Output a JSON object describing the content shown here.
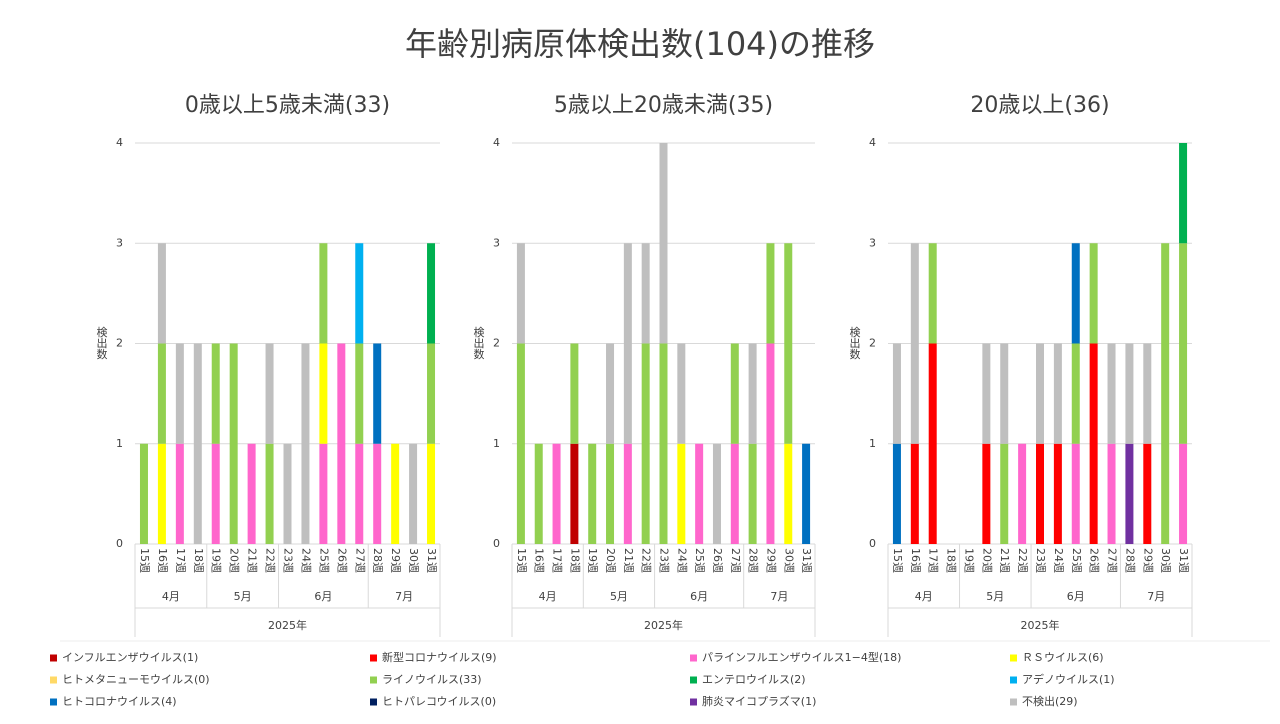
{
  "title": "年齢別病原体検出数(104)の推移",
  "series": [
    {
      "name": "インフルエンザウイルス(1)",
      "color": "#c00000"
    },
    {
      "name": "新型コロナウイルス(9)",
      "color": "#ff0000"
    },
    {
      "name": "パラインフルエンザウイルス1−4型(18)",
      "color": "#ff66cc"
    },
    {
      "name": "ＲＳウイルス(6)",
      "color": "#ffff00"
    },
    {
      "name": "ヒトメタニューモウイルス(0)",
      "color": "#ffd966"
    },
    {
      "name": "ライノウイルス(33)",
      "color": "#92d050"
    },
    {
      "name": "エンテロウイルス(2)",
      "color": "#00b050"
    },
    {
      "name": "アデノウイルス(1)",
      "color": "#00b0f0"
    },
    {
      "name": "ヒトコロナウイルス(4)",
      "color": "#0070c0"
    },
    {
      "name": "ヒトパレコウイルス(0)",
      "color": "#002060"
    },
    {
      "name": "肺炎マイコプラズマ(1)",
      "color": "#7030a0"
    },
    {
      "name": "不検出(29)",
      "color": "#bfbfbf"
    }
  ],
  "chart_data": [
    {
      "type": "bar",
      "stacked": true,
      "title": "0歳以上5歳未満(33)",
      "y_label": "検出数",
      "categories": [
        "15週",
        "16週",
        "17週",
        "18週",
        "19週",
        "20週",
        "21週",
        "22週",
        "23週",
        "24週",
        "25週",
        "26週",
        "27週",
        "28週",
        "29週",
        "30週",
        "31週"
      ],
      "months": [
        "4月",
        "5月",
        "6月",
        "7月"
      ],
      "year": "2025年",
      "ylim": [
        0,
        4
      ],
      "yticks": [
        0,
        1,
        2,
        3,
        4
      ],
      "grid": true,
      "series": [
        {
          "values": [
            0,
            0,
            0,
            0,
            0,
            0,
            0,
            0,
            0,
            0,
            0,
            0,
            0,
            0,
            0,
            0,
            0
          ]
        },
        {
          "values": [
            0,
            0,
            0,
            0,
            0,
            0,
            0,
            0,
            0,
            0,
            0,
            0,
            0,
            0,
            0,
            0,
            0
          ]
        },
        {
          "values": [
            0,
            0,
            1,
            0,
            1,
            0,
            1,
            0,
            0,
            0,
            1,
            2,
            1,
            1,
            0,
            0,
            0
          ]
        },
        {
          "values": [
            0,
            1,
            0,
            0,
            0,
            0,
            0,
            0,
            0,
            0,
            1,
            0,
            0,
            0,
            1,
            0,
            1
          ]
        },
        {
          "values": [
            0,
            0,
            0,
            0,
            0,
            0,
            0,
            0,
            0,
            0,
            0,
            0,
            0,
            0,
            0,
            0,
            0
          ]
        },
        {
          "values": [
            1,
            1,
            0,
            0,
            1,
            2,
            0,
            1,
            0,
            0,
            1,
            0,
            1,
            0,
            0,
            0,
            1
          ]
        },
        {
          "values": [
            0,
            0,
            0,
            0,
            0,
            0,
            0,
            0,
            0,
            0,
            0,
            0,
            0,
            0,
            0,
            0,
            1
          ]
        },
        {
          "values": [
            0,
            0,
            0,
            0,
            0,
            0,
            0,
            0,
            0,
            0,
            0,
            0,
            1,
            0,
            0,
            0,
            0
          ]
        },
        {
          "values": [
            0,
            0,
            0,
            0,
            0,
            0,
            0,
            0,
            0,
            0,
            0,
            0,
            0,
            1,
            0,
            0,
            0
          ]
        },
        {
          "values": [
            0,
            0,
            0,
            0,
            0,
            0,
            0,
            0,
            0,
            0,
            0,
            0,
            0,
            0,
            0,
            0,
            0
          ]
        },
        {
          "values": [
            0,
            0,
            0,
            0,
            0,
            0,
            0,
            0,
            0,
            0,
            0,
            0,
            0,
            0,
            0,
            0,
            0
          ]
        },
        {
          "values": [
            0,
            1,
            1,
            2,
            0,
            0,
            0,
            1,
            1,
            2,
            0,
            0,
            0,
            0,
            0,
            1,
            0
          ]
        }
      ]
    },
    {
      "type": "bar",
      "stacked": true,
      "title": "5歳以上20歳未満(35)",
      "y_label": "検出数",
      "categories": [
        "15週",
        "16週",
        "17週",
        "18週",
        "19週",
        "20週",
        "21週",
        "22週",
        "23週",
        "24週",
        "25週",
        "26週",
        "27週",
        "28週",
        "29週",
        "30週",
        "31週"
      ],
      "months": [
        "4月",
        "5月",
        "6月",
        "7月"
      ],
      "year": "2025年",
      "ylim": [
        0,
        4
      ],
      "yticks": [
        0,
        1,
        2,
        3,
        4
      ],
      "grid": true,
      "series": [
        {
          "values": [
            0,
            0,
            0,
            1,
            0,
            0,
            0,
            0,
            0,
            0,
            0,
            0,
            0,
            0,
            0,
            0,
            0
          ]
        },
        {
          "values": [
            0,
            0,
            0,
            0,
            0,
            0,
            0,
            0,
            0,
            0,
            0,
            0,
            0,
            0,
            0,
            0,
            0
          ]
        },
        {
          "values": [
            0,
            0,
            1,
            0,
            0,
            0,
            1,
            0,
            0,
            0,
            1,
            0,
            1,
            0,
            2,
            0,
            0
          ]
        },
        {
          "values": [
            0,
            0,
            0,
            0,
            0,
            0,
            0,
            0,
            0,
            1,
            0,
            0,
            0,
            0,
            0,
            1,
            0
          ]
        },
        {
          "values": [
            0,
            0,
            0,
            0,
            0,
            0,
            0,
            0,
            0,
            0,
            0,
            0,
            0,
            0,
            0,
            0,
            0
          ]
        },
        {
          "values": [
            2,
            1,
            0,
            1,
            1,
            1,
            0,
            2,
            2,
            0,
            0,
            0,
            1,
            1,
            1,
            2,
            0
          ]
        },
        {
          "values": [
            0,
            0,
            0,
            0,
            0,
            0,
            0,
            0,
            0,
            0,
            0,
            0,
            0,
            0,
            0,
            0,
            0
          ]
        },
        {
          "values": [
            0,
            0,
            0,
            0,
            0,
            0,
            0,
            0,
            0,
            0,
            0,
            0,
            0,
            0,
            0,
            0,
            0
          ]
        },
        {
          "values": [
            0,
            0,
            0,
            0,
            0,
            0,
            0,
            0,
            0,
            0,
            0,
            0,
            0,
            0,
            0,
            0,
            1
          ]
        },
        {
          "values": [
            0,
            0,
            0,
            0,
            0,
            0,
            0,
            0,
            0,
            0,
            0,
            0,
            0,
            0,
            0,
            0,
            0
          ]
        },
        {
          "values": [
            0,
            0,
            0,
            0,
            0,
            0,
            0,
            0,
            0,
            0,
            0,
            0,
            0,
            0,
            0,
            0,
            0
          ]
        },
        {
          "values": [
            1,
            0,
            0,
            0,
            0,
            1,
            2,
            1,
            2,
            1,
            0,
            1,
            0,
            1,
            0,
            0,
            0
          ]
        }
      ]
    },
    {
      "type": "bar",
      "stacked": true,
      "title": "20歳以上(36)",
      "y_label": "検出数",
      "categories": [
        "15週",
        "16週",
        "17週",
        "18週",
        "19週",
        "20週",
        "21週",
        "22週",
        "23週",
        "24週",
        "25週",
        "26週",
        "27週",
        "28週",
        "29週",
        "30週",
        "31週"
      ],
      "months": [
        "4月",
        "5月",
        "6月",
        "7月"
      ],
      "year": "2025年",
      "ylim": [
        0,
        4
      ],
      "yticks": [
        0,
        1,
        2,
        3,
        4
      ],
      "grid": true,
      "series": [
        {
          "values": [
            0,
            0,
            0,
            0,
            0,
            0,
            0,
            0,
            0,
            0,
            0,
            0,
            0,
            0,
            0,
            0,
            0
          ]
        },
        {
          "values": [
            0,
            1,
            2,
            0,
            0,
            1,
            0,
            0,
            1,
            1,
            0,
            2,
            0,
            0,
            1,
            0,
            0
          ]
        },
        {
          "values": [
            0,
            0,
            0,
            0,
            0,
            0,
            0,
            1,
            0,
            0,
            1,
            0,
            1,
            0,
            0,
            0,
            1
          ]
        },
        {
          "values": [
            0,
            0,
            0,
            0,
            0,
            0,
            0,
            0,
            0,
            0,
            0,
            0,
            0,
            0,
            0,
            0,
            0
          ]
        },
        {
          "values": [
            0,
            0,
            0,
            0,
            0,
            0,
            0,
            0,
            0,
            0,
            0,
            0,
            0,
            0,
            0,
            0,
            0
          ]
        },
        {
          "values": [
            0,
            0,
            1,
            0,
            0,
            0,
            1,
            0,
            0,
            0,
            1,
            1,
            0,
            0,
            0,
            3,
            2
          ]
        },
        {
          "values": [
            0,
            0,
            0,
            0,
            0,
            0,
            0,
            0,
            0,
            0,
            0,
            0,
            0,
            0,
            0,
            0,
            1
          ]
        },
        {
          "values": [
            0,
            0,
            0,
            0,
            0,
            0,
            0,
            0,
            0,
            0,
            0,
            0,
            0,
            0,
            0,
            0,
            0
          ]
        },
        {
          "values": [
            1,
            0,
            0,
            0,
            0,
            0,
            0,
            0,
            0,
            0,
            1,
            0,
            0,
            0,
            0,
            0,
            0
          ]
        },
        {
          "values": [
            0,
            0,
            0,
            0,
            0,
            0,
            0,
            0,
            0,
            0,
            0,
            0,
            0,
            0,
            0,
            0,
            0
          ]
        },
        {
          "values": [
            0,
            0,
            0,
            0,
            0,
            0,
            0,
            0,
            0,
            0,
            0,
            0,
            0,
            1,
            0,
            0,
            0
          ]
        },
        {
          "values": [
            1,
            2,
            0,
            0,
            0,
            1,
            1,
            0,
            1,
            1,
            0,
            0,
            1,
            1,
            1,
            0,
            0
          ]
        }
      ]
    }
  ]
}
